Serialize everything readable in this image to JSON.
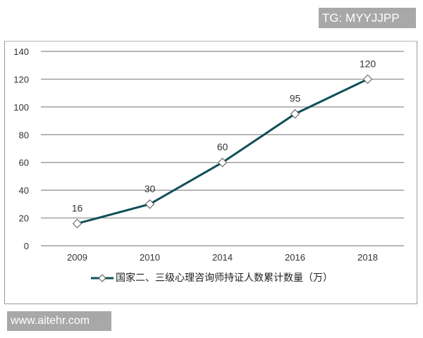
{
  "watermarks": {
    "top": "TG: MYYJJPP",
    "bottom": "www.aitehr.com"
  },
  "legend": {
    "label": "国家二、三级心理咨询师持证人数累计数量（万）"
  },
  "colors": {
    "line": "#0f4f57",
    "grid": "#8c8c8c",
    "marker_fill": "#ffffff"
  },
  "chart_data": {
    "type": "line",
    "title": "",
    "xlabel": "",
    "ylabel": "",
    "categories": [
      "2009",
      "2010",
      "2014",
      "2016",
      "2018"
    ],
    "series": [
      {
        "name": "国家二、三级心理咨询师持证人数累计数量（万）",
        "values": [
          16,
          30,
          60,
          95,
          120
        ],
        "marker": "diamond",
        "data_labels": [
          "16",
          "30",
          "60",
          "95",
          "120"
        ]
      }
    ],
    "yticks": [
      "0",
      "20",
      "40",
      "60",
      "80",
      "100",
      "120",
      "140"
    ],
    "ylim": [
      0,
      140
    ],
    "grid": true,
    "legend_position": "bottom"
  }
}
